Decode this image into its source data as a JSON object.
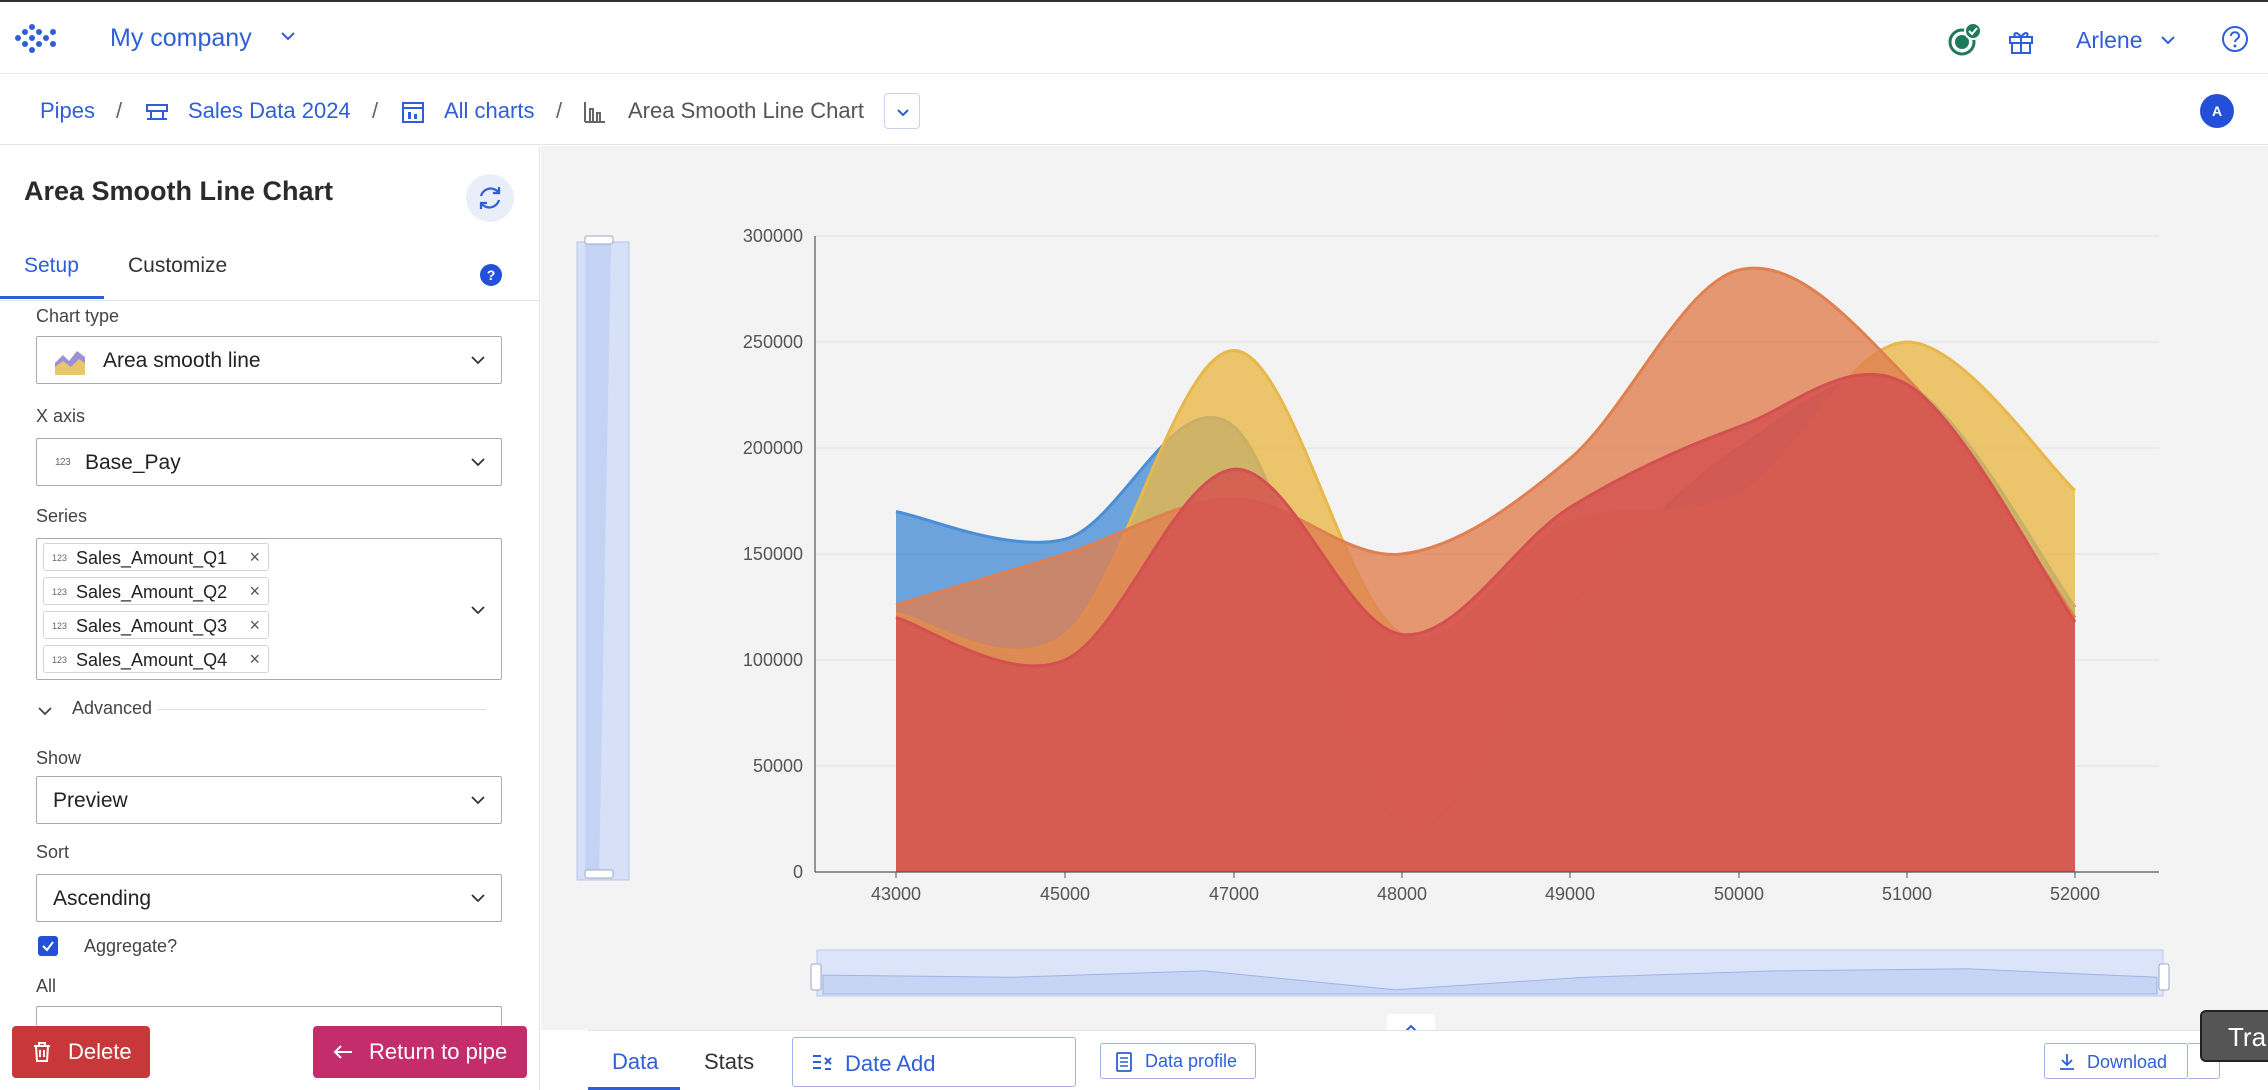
{
  "header": {
    "company": "My company",
    "user": "Arlene"
  },
  "breadcrumb": {
    "items": [
      "Pipes",
      "Sales Data 2024",
      "All charts",
      "Area Smooth Line Chart"
    ],
    "avatar_initial": "A"
  },
  "panel": {
    "title": "Area Smooth Line Chart",
    "tabs": [
      "Setup",
      "Customize"
    ],
    "help": "?",
    "chart_type_label": "Chart type",
    "chart_type_value": "Area smooth line",
    "x_axis_label": "X axis",
    "x_axis_value": "Base_Pay",
    "series_label": "Series",
    "series": [
      "Sales_Amount_Q1",
      "Sales_Amount_Q2",
      "Sales_Amount_Q3",
      "Sales_Amount_Q4"
    ],
    "numeric_icon_text": "123",
    "advanced_label": "Advanced",
    "show_label": "Show",
    "show_value": "Preview",
    "sort_label": "Sort",
    "sort_value": "Ascending",
    "aggregate_label": "Aggregate?",
    "aggregate_checked": true,
    "all_label": "All",
    "delete_label": "Delete",
    "return_label": "Return to pipe"
  },
  "bottom": {
    "tabs": [
      "Data",
      "Stats"
    ],
    "date_add": "Date Add",
    "data_profile": "Data profile",
    "download": "Download",
    "tooltip_text": "Tra"
  },
  "colors": {
    "accent": "#2f5fd6",
    "delete": "#c8383a",
    "return": "#c42d6b"
  },
  "chart_data": {
    "type": "area",
    "smooth": true,
    "x": [
      43000,
      45000,
      47000,
      48000,
      49000,
      50000,
      51000,
      52000
    ],
    "ylim": [
      0,
      300000
    ],
    "yticks": [
      0,
      50000,
      100000,
      150000,
      200000,
      250000,
      300000
    ],
    "grid": true,
    "series": [
      {
        "color": "#4a8fd6",
        "values": [
          170000,
          157000,
          210000,
          22000,
          125000,
          200000,
          230000,
          125000
        ]
      },
      {
        "color": "#e8b84a",
        "values": [
          122000,
          112000,
          246000,
          112000,
          165000,
          178000,
          250000,
          180000
        ]
      },
      {
        "color": "#e08050",
        "values": [
          126000,
          150000,
          176000,
          150000,
          195000,
          284000,
          233000,
          120000
        ]
      },
      {
        "color": "#d44f4f",
        "values": [
          120000,
          100000,
          190000,
          112000,
          172000,
          210000,
          230000,
          118000
        ]
      }
    ],
    "slider_profile": [
      0.55,
      0.6,
      0.45,
      0.9,
      0.6,
      0.45,
      0.4,
      0.6
    ]
  }
}
